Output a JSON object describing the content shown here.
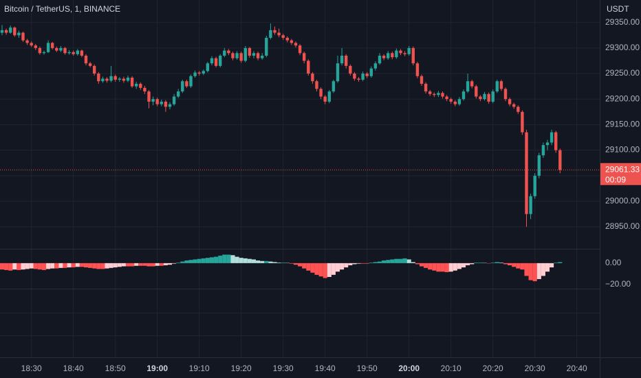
{
  "chart_data": [
    {
      "type": "candlestick",
      "title": "Bitcoin / TetherUS, 1, BINANCE",
      "currency": "USDT",
      "x": [
        "18:23",
        "18:24",
        "18:25",
        "18:26",
        "18:27",
        "18:28",
        "18:29",
        "18:30",
        "18:31",
        "18:32",
        "18:33",
        "18:34",
        "18:35",
        "18:36",
        "18:37",
        "18:38",
        "18:39",
        "18:40",
        "18:41",
        "18:42",
        "18:43",
        "18:44",
        "18:45",
        "18:46",
        "18:47",
        "18:48",
        "18:49",
        "18:50",
        "18:51",
        "18:52",
        "18:53",
        "18:54",
        "18:55",
        "18:56",
        "18:57",
        "18:58",
        "18:59",
        "19:00",
        "19:01",
        "19:02",
        "19:03",
        "19:04",
        "19:05",
        "19:06",
        "19:07",
        "19:08",
        "19:09",
        "19:10",
        "19:11",
        "19:12",
        "19:13",
        "19:14",
        "19:15",
        "19:16",
        "19:17",
        "19:18",
        "19:19",
        "19:20",
        "19:21",
        "19:22",
        "19:23",
        "19:24",
        "19:25",
        "19:26",
        "19:27",
        "19:28",
        "19:29",
        "19:30",
        "19:31",
        "19:32",
        "19:33",
        "19:34",
        "19:35",
        "19:36",
        "19:37",
        "19:38",
        "19:39",
        "19:40",
        "19:41",
        "19:42",
        "19:43",
        "19:44",
        "19:45",
        "19:46",
        "19:47",
        "19:48",
        "19:49",
        "19:50",
        "19:51",
        "19:52",
        "19:53",
        "19:54",
        "19:55",
        "19:56",
        "19:57",
        "19:58",
        "19:59",
        "20:00",
        "20:01",
        "20:02",
        "20:03",
        "20:04",
        "20:05",
        "20:06",
        "20:07",
        "20:08",
        "20:09",
        "20:10",
        "20:11",
        "20:12",
        "20:13",
        "20:14",
        "20:15",
        "20:16",
        "20:17",
        "20:18",
        "20:19",
        "20:20",
        "20:21",
        "20:22",
        "20:23",
        "20:24",
        "20:25",
        "20:26",
        "20:27",
        "20:28",
        "20:29",
        "20:30",
        "20:31",
        "20:32",
        "20:33",
        "20:34",
        "20:35",
        "20:36"
      ],
      "open": [
        29330,
        29335,
        29330,
        29340,
        29325,
        29330,
        29315,
        29310,
        29305,
        29300,
        29290,
        29292,
        29310,
        29300,
        29295,
        29300,
        29290,
        29292,
        29288,
        29295,
        29285,
        29270,
        29265,
        29250,
        29235,
        29240,
        29236,
        29245,
        29238,
        29240,
        29236,
        29242,
        29225,
        29230,
        29222,
        29215,
        29195,
        29200,
        29190,
        29195,
        29185,
        29190,
        29205,
        29215,
        29235,
        29225,
        29245,
        29252,
        29250,
        29255,
        29270,
        29280,
        29265,
        29285,
        29295,
        29290,
        29280,
        29290,
        29275,
        29300,
        29285,
        29290,
        29280,
        29285,
        29320,
        29335,
        29330,
        29325,
        29320,
        29315,
        29310,
        29305,
        29290,
        29275,
        29250,
        29235,
        29220,
        29205,
        29195,
        29215,
        29235,
        29270,
        29285,
        29265,
        29250,
        29240,
        29238,
        29250,
        29245,
        29260,
        29270,
        29285,
        29280,
        29290,
        29282,
        29295,
        29290,
        29288,
        29300,
        29270,
        29245,
        29230,
        29215,
        29210,
        29208,
        29212,
        29205,
        29200,
        29195,
        29190,
        29200,
        29215,
        29235,
        29225,
        29205,
        29200,
        29210,
        29195,
        29215,
        29235,
        29220,
        29200,
        29190,
        29185,
        29175,
        29135,
        28975,
        29010,
        29050,
        29090,
        29110,
        29115,
        29135,
        29100
      ],
      "high": [
        29345,
        29338,
        29344,
        29342,
        29334,
        29332,
        29318,
        29313,
        29308,
        29303,
        29295,
        29315,
        29312,
        29303,
        29304,
        29302,
        29296,
        29295,
        29298,
        29297,
        29288,
        29273,
        29268,
        29253,
        29244,
        29243,
        29265,
        29248,
        29243,
        29244,
        29246,
        29245,
        29234,
        29233,
        29226,
        29218,
        29205,
        29203,
        29199,
        29198,
        29194,
        29210,
        29220,
        29238,
        29238,
        29248,
        29256,
        29255,
        29258,
        29273,
        29284,
        29283,
        29288,
        29300,
        29298,
        29293,
        29294,
        29293,
        29304,
        29302,
        29294,
        29293,
        29290,
        29324,
        29348,
        29342,
        29338,
        29328,
        29323,
        29318,
        29313,
        29308,
        29293,
        29278,
        29253,
        29238,
        29223,
        29208,
        29218,
        29238,
        29285,
        29300,
        29288,
        29268,
        29253,
        29243,
        29254,
        29253,
        29264,
        29274,
        29290,
        29288,
        29294,
        29293,
        29299,
        29298,
        29294,
        29304,
        29303,
        29273,
        29248,
        29233,
        29218,
        29213,
        29216,
        29215,
        29208,
        29203,
        29198,
        29204,
        29219,
        29250,
        29238,
        29228,
        29208,
        29214,
        29213,
        29219,
        29238,
        29238,
        29223,
        29203,
        29193,
        29188,
        29178,
        29140,
        29015,
        29055,
        29095,
        29115,
        29120,
        29140,
        29138,
        29103
      ],
      "low": [
        29325,
        29326,
        29328,
        29322,
        29320,
        29312,
        29306,
        29302,
        29296,
        29287,
        29287,
        29290,
        29297,
        29292,
        29292,
        29287,
        29287,
        29285,
        29285,
        29282,
        29266,
        29262,
        29246,
        29230,
        29232,
        29232,
        29233,
        29234,
        29234,
        29232,
        29233,
        29222,
        29220,
        29218,
        29210,
        29182,
        29188,
        29186,
        29186,
        29175,
        29180,
        29187,
        29202,
        29212,
        29222,
        29222,
        29242,
        29246,
        29247,
        29252,
        29266,
        29262,
        29262,
        29282,
        29286,
        29276,
        29277,
        29271,
        29272,
        29281,
        29280,
        29276,
        29277,
        29282,
        29317,
        29326,
        29321,
        29316,
        29311,
        29306,
        29301,
        29286,
        29270,
        29246,
        29230,
        29215,
        29200,
        29190,
        29192,
        29212,
        29232,
        29266,
        29260,
        29246,
        29236,
        29234,
        29235,
        29241,
        29242,
        29256,
        29267,
        29276,
        29277,
        29278,
        29279,
        29286,
        29284,
        29285,
        29266,
        29241,
        29226,
        29211,
        29206,
        29204,
        29204,
        29201,
        29196,
        29191,
        29186,
        29187,
        29197,
        29212,
        29221,
        29201,
        29196,
        29197,
        29191,
        29192,
        29212,
        29216,
        29196,
        29186,
        29181,
        29171,
        29130,
        28950,
        28965,
        29005,
        29045,
        29085,
        29100,
        29110,
        29095,
        29055
      ],
      "close": [
        29335,
        29330,
        29340,
        29325,
        29330,
        29315,
        29310,
        29305,
        29300,
        29290,
        29292,
        29310,
        29300,
        29295,
        29300,
        29290,
        29292,
        29288,
        29295,
        29285,
        29270,
        29265,
        29250,
        29235,
        29240,
        29236,
        29245,
        29238,
        29240,
        29236,
        29242,
        29225,
        29230,
        29222,
        29215,
        29195,
        29200,
        29190,
        29195,
        29185,
        29190,
        29205,
        29215,
        29235,
        29225,
        29245,
        29252,
        29250,
        29255,
        29270,
        29280,
        29265,
        29285,
        29295,
        29290,
        29280,
        29290,
        29275,
        29300,
        29285,
        29290,
        29280,
        29285,
        29320,
        29335,
        29330,
        29325,
        29320,
        29315,
        29310,
        29305,
        29290,
        29275,
        29250,
        29235,
        29220,
        29205,
        29195,
        29215,
        29235,
        29270,
        29285,
        29265,
        29250,
        29240,
        29238,
        29250,
        29245,
        29260,
        29270,
        29285,
        29280,
        29290,
        29282,
        29295,
        29290,
        29288,
        29300,
        29270,
        29245,
        29230,
        29215,
        29210,
        29208,
        29212,
        29205,
        29200,
        29195,
        29190,
        29200,
        29215,
        29235,
        29225,
        29205,
        29200,
        29210,
        29195,
        29215,
        29235,
        29220,
        29200,
        29190,
        29185,
        29175,
        29135,
        28975,
        29010,
        29050,
        29090,
        29110,
        29115,
        29135,
        29100,
        29061.33
      ],
      "up_color": "#26a69a",
      "down_color": "#ef5350",
      "last_price": 29061.33,
      "countdown": "00:09",
      "ylim": [
        28907,
        29394
      ],
      "yticks": [
        {
          "value": 29350,
          "label": "29350.00"
        },
        {
          "value": 29300,
          "label": "29300.00"
        },
        {
          "value": 29250,
          "label": "29250.00"
        },
        {
          "value": 29200,
          "label": "29200.00"
        },
        {
          "value": 29150,
          "label": "29150.00"
        },
        {
          "value": 29100,
          "label": "29100.00"
        },
        {
          "value": 29050,
          "label": "29050.00"
        },
        {
          "value": 29000,
          "label": "29000.00"
        },
        {
          "value": 28950,
          "label": "28950.00"
        }
      ],
      "xticks": [
        "18:30",
        "18:40",
        "18:50",
        "19:00",
        "19:10",
        "19:20",
        "19:30",
        "19:40",
        "19:50",
        "20:00",
        "20:10",
        "20:20",
        "20:30",
        "20:40"
      ],
      "grid": true
    },
    {
      "type": "histogram",
      "values": [
        -6,
        -6.5,
        -7,
        -6,
        -6.5,
        -6,
        -5.5,
        -5,
        -5.5,
        -6,
        -6.5,
        -5.5,
        -5,
        -5,
        -4.5,
        -4.5,
        -4,
        -4,
        -3.5,
        -3.5,
        -4,
        -4.5,
        -5,
        -5.5,
        -5.5,
        -5,
        -4.5,
        -4,
        -3.5,
        -3,
        -3,
        -3,
        -2.5,
        -2.5,
        -2.5,
        -3,
        -3,
        -2.5,
        -2.5,
        -2,
        -1.5,
        -0.5,
        0.5,
        1.5,
        2.5,
        3,
        3.5,
        4,
        4.5,
        5,
        5.5,
        6,
        7,
        8,
        8,
        7.5,
        6,
        5,
        4.5,
        4,
        3.5,
        2.5,
        2,
        2,
        1.5,
        1,
        0.5,
        0.5,
        0.3,
        -0.5,
        -1.5,
        -3,
        -5,
        -7,
        -9,
        -11,
        -12.5,
        -14,
        -13,
        -11,
        -8,
        -6,
        -4,
        -2,
        -1,
        -0.5,
        -0.5,
        -0.5,
        0.5,
        1,
        1.5,
        2.5,
        3,
        3.5,
        4,
        4,
        4.5,
        3.5,
        1,
        -1,
        -3,
        -4.5,
        -6,
        -7,
        -8,
        -8,
        -8.5,
        -8,
        -7,
        -5.5,
        -4,
        -2,
        -1,
        0.5,
        0.5,
        0.3,
        -0.3,
        0.5,
        1,
        0.5,
        -1,
        -2,
        -3.5,
        -5,
        -6,
        -12,
        -16,
        -17,
        -15,
        -12,
        -8,
        -4,
        0.5,
        1
      ],
      "colors": {
        "pos_up": "#26a69a",
        "pos_down": "#b2dfdb",
        "neg_down": "#ff5252",
        "neg_up": "#ffcdd2"
      },
      "ylim": [
        -24,
        13.5
      ],
      "yticks": [
        {
          "value": 0,
          "label": "0.00"
        },
        {
          "value": -20,
          "label": "−20.00"
        }
      ]
    }
  ]
}
